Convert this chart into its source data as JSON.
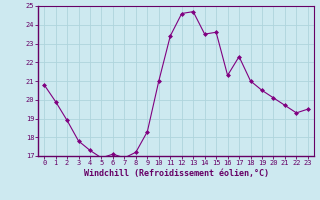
{
  "x": [
    0,
    1,
    2,
    3,
    4,
    5,
    6,
    7,
    8,
    9,
    10,
    11,
    12,
    13,
    14,
    15,
    16,
    17,
    18,
    19,
    20,
    21,
    22,
    23
  ],
  "y": [
    20.8,
    19.9,
    18.9,
    17.8,
    17.3,
    16.9,
    17.1,
    16.9,
    17.2,
    18.3,
    21.0,
    23.4,
    24.6,
    24.7,
    23.5,
    23.6,
    21.3,
    22.3,
    21.0,
    20.5,
    20.1,
    19.7,
    19.3,
    19.5
  ],
  "line_color": "#800080",
  "marker": "D",
  "marker_size": 2.0,
  "bg_color": "#cde9f0",
  "grid_color": "#afd4dc",
  "xlabel": "Windchill (Refroidissement éolien,°C)",
  "xlim": [
    -0.5,
    23.5
  ],
  "ylim": [
    17,
    25
  ],
  "yticks": [
    17,
    18,
    19,
    20,
    21,
    22,
    23,
    24,
    25
  ],
  "xticks": [
    0,
    1,
    2,
    3,
    4,
    5,
    6,
    7,
    8,
    9,
    10,
    11,
    12,
    13,
    14,
    15,
    16,
    17,
    18,
    19,
    20,
    21,
    22,
    23
  ],
  "xtick_labels": [
    "0",
    "1",
    "2",
    "3",
    "4",
    "5",
    "6",
    "7",
    "8",
    "9",
    "10",
    "11",
    "12",
    "13",
    "14",
    "15",
    "16",
    "17",
    "18",
    "19",
    "20",
    "21",
    "22",
    "23"
  ],
  "label_color": "#660066",
  "tick_color": "#660066",
  "spine_color": "#660066",
  "xlabel_fontsize": 6.0,
  "tick_fontsize": 5.0
}
